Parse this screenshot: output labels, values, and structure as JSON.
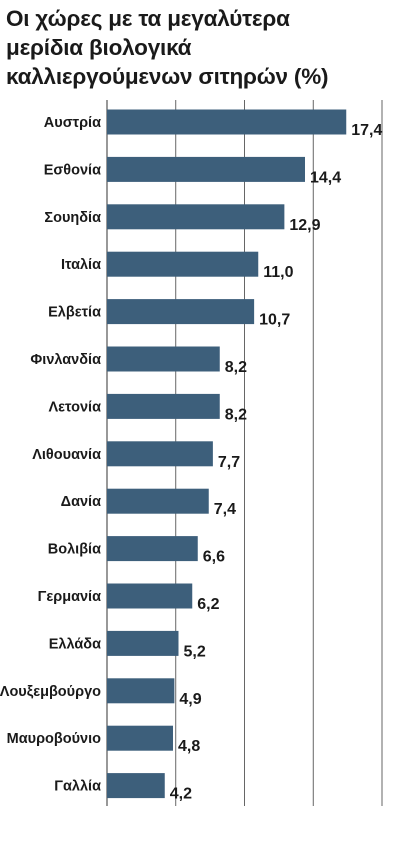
{
  "chart_data": {
    "type": "bar",
    "orientation": "horizontal",
    "title_lines": [
      "Οι χώρες με τα μεγαλύτερα",
      "μερίδια βιολογικά",
      "καλλιεργούμενων σιτηρών (%)"
    ],
    "categories": [
      "Αυστρία",
      "Εσθονία",
      "Σουηδία",
      "Ιταλία",
      "Ελβετία",
      "Φινλανδία",
      "Λετονία",
      "Λιθουανία",
      "Δανία",
      "Βολιβία",
      "Γερμανία",
      "Ελλάδα",
      "Λουξεμβούργο",
      "Μαυροβούνιο",
      "Γαλλία"
    ],
    "value_labels": [
      "17,4",
      "14,4",
      "12,9",
      "11,0",
      "10,7",
      "8,2",
      "8,2",
      "7,7",
      "7,4",
      "6,6",
      "6,2",
      "5,2",
      "4,9",
      "4,8",
      "4,2"
    ],
    "values": [
      17.4,
      14.4,
      12.9,
      11.0,
      10.7,
      8.2,
      8.2,
      7.7,
      7.4,
      6.6,
      6.2,
      5.2,
      4.9,
      4.8,
      4.2
    ],
    "xlim": [
      0,
      20
    ],
    "grid": true,
    "bar_color": "#3d5f7b",
    "gridline_color": "#555555"
  }
}
